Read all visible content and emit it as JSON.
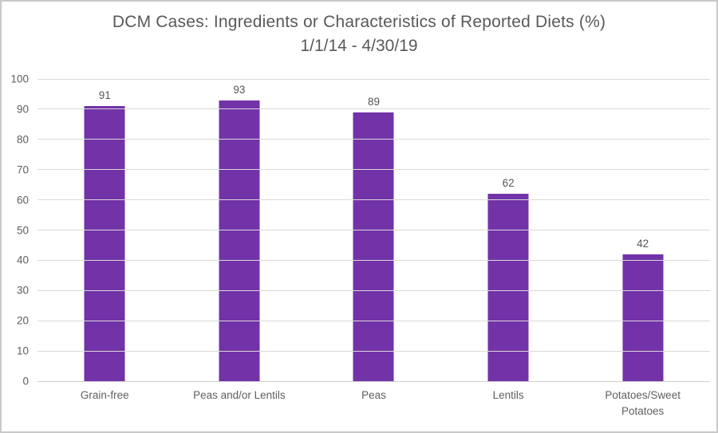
{
  "page": {
    "background": "#ffffff",
    "frame_border_color": "#c9c9c9"
  },
  "chart_data": {
    "type": "bar",
    "title": "DCM Cases: Ingredients or Characteristics of Reported Diets (%)",
    "subtitle": "1/1/14 - 4/30/19",
    "categories": [
      "Grain-free",
      "Peas and/or Lentils",
      "Peas",
      "Lentils",
      "Potatoes/Sweet Potatoes"
    ],
    "values": [
      91,
      93,
      89,
      62,
      42
    ],
    "data_labels": [
      "91",
      "93",
      "89",
      "62",
      "42"
    ],
    "xlabel": "",
    "ylabel": "",
    "ylim": [
      0,
      100
    ],
    "yticks": [
      0,
      10,
      20,
      30,
      40,
      50,
      60,
      70,
      80,
      90,
      100
    ],
    "grid": true,
    "legend": "none",
    "bar_color": "#7232a8",
    "gridline_color": "#d9d9d9",
    "axis_line_color": "#cfcfcf",
    "title_color": "#595959",
    "tick_label_color": "#5f5f5f",
    "data_label_color": "#555555"
  }
}
